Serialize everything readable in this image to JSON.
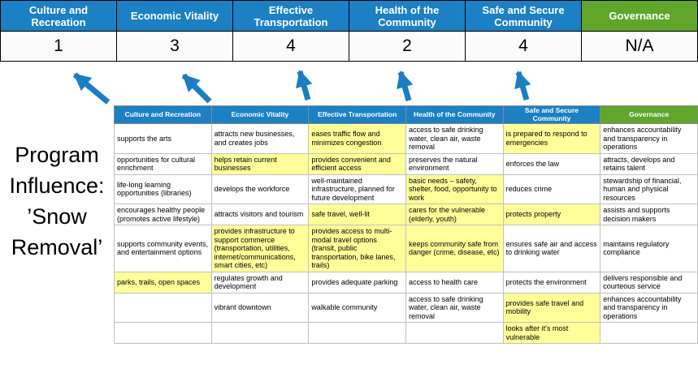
{
  "colors": {
    "header_blue": "#1B80C4",
    "header_green": "#5FA62B",
    "highlight_yellow": "#FFFF99",
    "arrow_blue": "#1B7EC3"
  },
  "title": {
    "lines": [
      "Program",
      "Influence:",
      "’Snow",
      "Removal’"
    ]
  },
  "scoreband": {
    "columns": [
      {
        "label": "Culture and Recreation",
        "score": "1"
      },
      {
        "label": "Economic Vitality",
        "score": "3"
      },
      {
        "label": "Effective Transportation",
        "score": "4"
      },
      {
        "label": "Health of the Community",
        "score": "2"
      },
      {
        "label": "Safe and Secure Community",
        "score": "4"
      },
      {
        "label": "Governance",
        "score": "N/A"
      }
    ]
  },
  "matrix": {
    "headers": [
      "Culture and Recreation",
      "Economic Vitality",
      "Effective Transportation",
      "Health of the Community",
      "Safe and Secure Community",
      "Governance"
    ],
    "rows": [
      [
        {
          "text": "supports the arts",
          "highlight": false
        },
        {
          "text": "attracts new businesses, and creates jobs",
          "highlight": false
        },
        {
          "text": "eases traffic flow and minimizes congestion",
          "highlight": true
        },
        {
          "text": "access to safe drinking water, clean air, waste removal",
          "highlight": false
        },
        {
          "text": "is prepared to respond to emergencies",
          "highlight": true
        },
        {
          "text": "enhances accountability and transparency in operations",
          "highlight": false
        }
      ],
      [
        {
          "text": "opportunities for cultural enrichment",
          "highlight": false
        },
        {
          "text": "helps retain current businesses",
          "highlight": true
        },
        {
          "text": "provides convenient and efficient access",
          "highlight": true
        },
        {
          "text": "preserves the natural environment",
          "highlight": false
        },
        {
          "text": "enforces the law",
          "highlight": false
        },
        {
          "text": "attracts, develops and retains talent",
          "highlight": false
        }
      ],
      [
        {
          "text": "life-long learning opportunities (libraries)",
          "highlight": false
        },
        {
          "text": "develops the workforce",
          "highlight": false
        },
        {
          "text": "well-maintained infrastructure, planned for future development",
          "highlight": false
        },
        {
          "text": "basic needs – safety, shelter, food, opportunity to work",
          "highlight": true
        },
        {
          "text": "reduces crime",
          "highlight": false
        },
        {
          "text": "stewardship of financial, human and physical resources",
          "highlight": false
        }
      ],
      [
        {
          "text": "encourages healthy people (promotes active lifestyle)",
          "highlight": false
        },
        {
          "text": "attracts visitors and tourism",
          "highlight": false
        },
        {
          "text": "safe travel, well-lit",
          "highlight": true
        },
        {
          "text": "cares for the vulnerable (elderly, youth)",
          "highlight": true
        },
        {
          "text": "protects property",
          "highlight": true
        },
        {
          "text": "assists and supports decision makers",
          "highlight": false
        }
      ],
      [
        {
          "text": "supports community events, and entertainment options",
          "highlight": false
        },
        {
          "text": "provides infrastructure to support commerce (transportation, utilities, internet/communications, smart cities, etc)",
          "highlight": true
        },
        {
          "text": "provides access to multi-modal travel options (transit, public transportation, bike lanes, trails)",
          "highlight": true
        },
        {
          "text": "keeps community safe from danger (crime, disease, etc)",
          "highlight": true
        },
        {
          "text": "ensures safe air and access to drinking water",
          "highlight": false
        },
        {
          "text": "maintains regulatory compliance",
          "highlight": false
        }
      ],
      [
        {
          "text": "parks, trails, open spaces",
          "highlight": true
        },
        {
          "text": "regulates growth and development",
          "highlight": false
        },
        {
          "text": "provides adequate parking",
          "highlight": false
        },
        {
          "text": "access to health care",
          "highlight": false
        },
        {
          "text": "protects the environment",
          "highlight": false
        },
        {
          "text": "delivers responsible and courteous service",
          "highlight": false
        }
      ],
      [
        {
          "text": "",
          "highlight": false
        },
        {
          "text": "vibrant downtown",
          "highlight": false
        },
        {
          "text": "walkable community",
          "highlight": false
        },
        {
          "text": "access to safe drinking water, clean air, waste removal",
          "highlight": false
        },
        {
          "text": "provides safe travel and mobility",
          "highlight": true
        },
        {
          "text": "enhances accountability and transparency in operations",
          "highlight": false
        }
      ],
      [
        {
          "text": "",
          "highlight": false
        },
        {
          "text": "",
          "highlight": false
        },
        {
          "text": "",
          "highlight": false
        },
        {
          "text": "",
          "highlight": false
        },
        {
          "text": "looks after it's most vulnerable",
          "highlight": true
        },
        {
          "text": "",
          "highlight": false
        }
      ]
    ]
  }
}
